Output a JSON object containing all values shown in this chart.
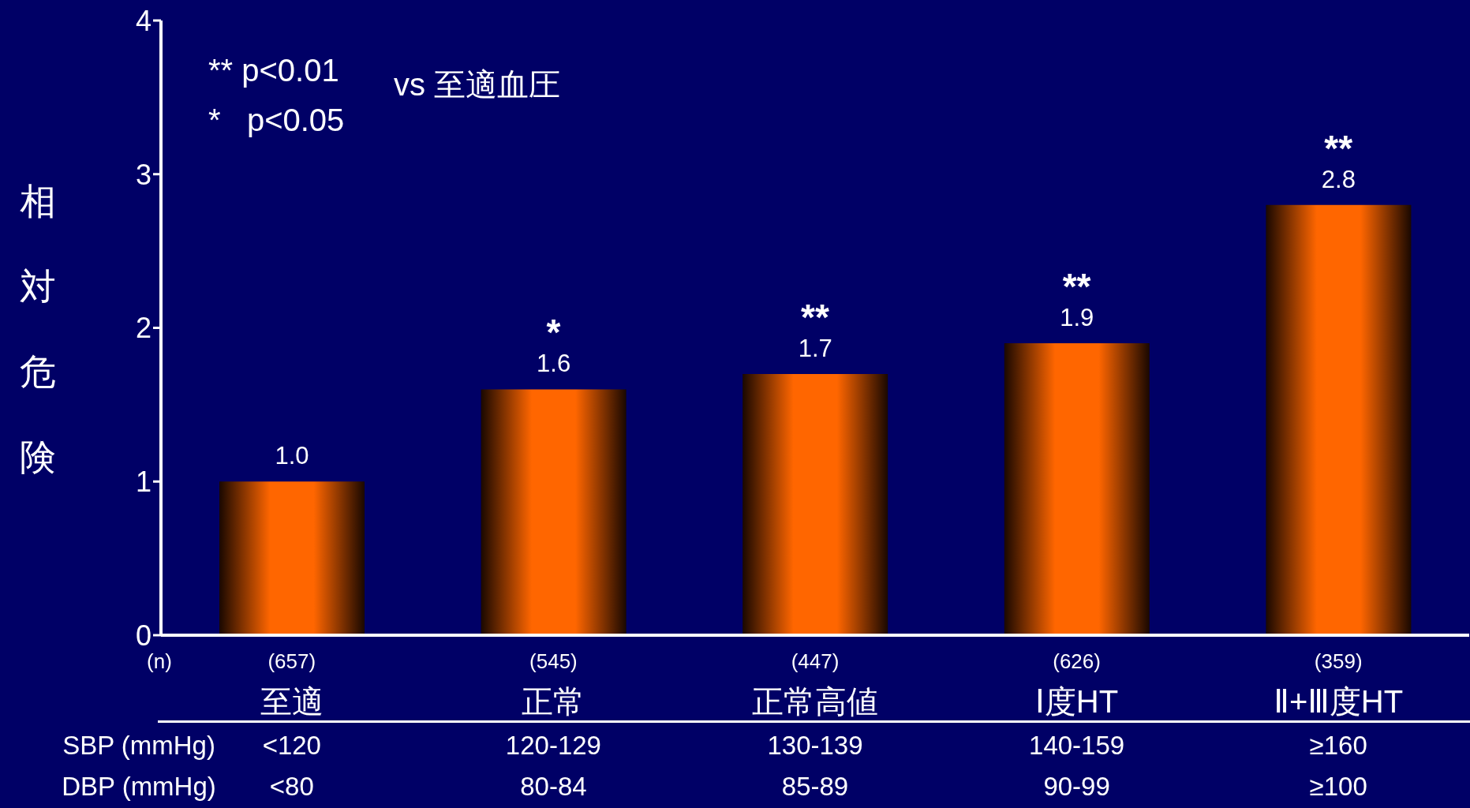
{
  "chart_data": {
    "type": "bar",
    "ylabel": "相対危険",
    "categories": [
      "至適",
      "正常",
      "正常高値",
      "Ⅰ度HT",
      "Ⅱ+Ⅲ度HT"
    ],
    "values": [
      1.0,
      1.6,
      1.7,
      1.9,
      2.8
    ],
    "value_labels": [
      "1.0",
      "1.6",
      "1.7",
      "1.9",
      "2.8"
    ],
    "color": "#ff6600",
    "ylim": [
      0,
      4
    ],
    "yticks": [
      0,
      1,
      2,
      3,
      4
    ],
    "grid": false,
    "legend": false,
    "annotations": [
      "** p<0.01",
      "*   p<0.05",
      "vs 至適血圧",
      "(n)",
      "SBP (mmHg)",
      "DBP (mmHg)",
      "(657)",
      "<120",
      "<80",
      "(545)",
      "120-129",
      "80-84",
      "(447)",
      "130-139",
      "85-89",
      "(626)",
      "140-159",
      "90-99",
      "(359)",
      "≥160",
      "≥100",
      {
        "text": "*",
        "x": "正常",
        "y": 1.6
      },
      {
        "text": "**",
        "x": "正常高値",
        "y": 1.7
      },
      {
        "text": "**",
        "x": "Ⅰ度HT",
        "y": 1.9
      },
      {
        "text": "**",
        "x": "Ⅱ+Ⅲ度HT",
        "y": 2.8
      }
    ]
  }
}
